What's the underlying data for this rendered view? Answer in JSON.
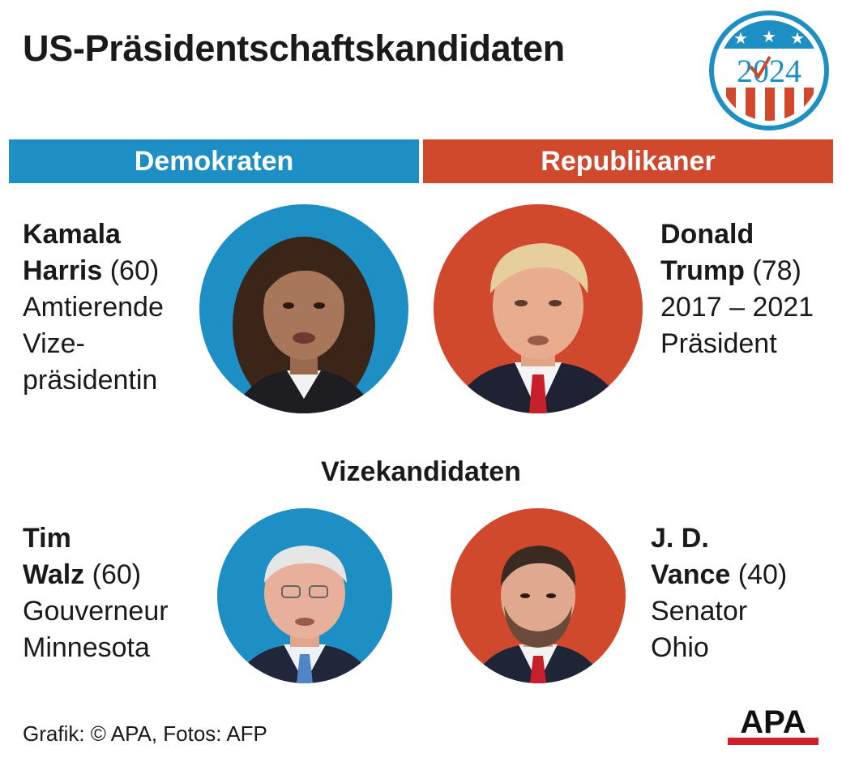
{
  "title": "US-Präsidentschaftskandidaten",
  "logo": {
    "year": "2024",
    "icon": "election-2024-badge"
  },
  "parties": {
    "dem": {
      "label": "Demokraten",
      "color": "#1d8fc4"
    },
    "rep": {
      "label": "Republikaner",
      "color": "#d1492c"
    }
  },
  "candidates": {
    "harris": {
      "first": "Kamala",
      "last": "Harris",
      "age": "(60)",
      "desc1": "Amtierende",
      "desc2": "Vize-",
      "desc3": "präsidentin"
    },
    "trump": {
      "first": "Donald",
      "last": "Trump",
      "age": "(78)",
      "desc1": "2017 – 2021",
      "desc2": "Präsident"
    }
  },
  "vice_heading": "Vizekandidaten",
  "vice": {
    "walz": {
      "first": "Tim",
      "last": "Walz",
      "age": "(60)",
      "desc1": "Gouverneur",
      "desc2": "Minnesota"
    },
    "vance": {
      "first": "J. D.",
      "last": "Vance",
      "age": "(40)",
      "desc1": "Senator",
      "desc2": "Ohio"
    }
  },
  "credit": "Grafik: © APA, Fotos: AFP",
  "apa_logo": "APA"
}
